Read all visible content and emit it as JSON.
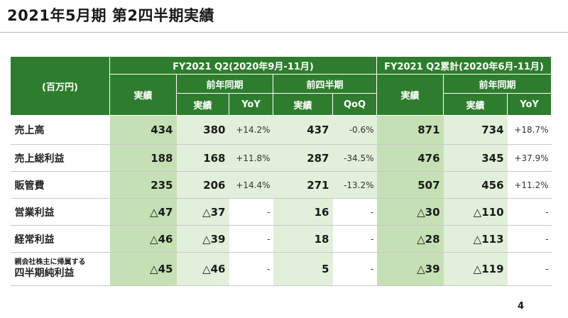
{
  "page": {
    "title": "2021年5月期 第2四半期実績",
    "page_number": "4"
  },
  "table": {
    "unit_label": "(百万円)",
    "group_q2": "FY2021 Q2(2020年9月-11月)",
    "group_ytd": "FY2021 Q2累計(2020年6月-11月)",
    "col_actual": "実績",
    "col_prev_year_period": "前年同期",
    "col_prev_quarter": "前四半期",
    "col_yoy": "YoY",
    "col_qoq": "QoQ",
    "rows": [
      {
        "label": "売上高",
        "q2_actual": "434",
        "q2_prev_year": "380",
        "q2_yoy": "+14.2%",
        "q2_prev_quarter": "437",
        "q2_qoq": "-0.6%",
        "ytd_actual": "871",
        "ytd_prev_year": "734",
        "ytd_yoy": "+18.7%"
      },
      {
        "label": "売上総利益",
        "q2_actual": "188",
        "q2_prev_year": "168",
        "q2_yoy": "+11.8%",
        "q2_prev_quarter": "287",
        "q2_qoq": "-34.5%",
        "ytd_actual": "476",
        "ytd_prev_year": "345",
        "ytd_yoy": "+37.9%"
      },
      {
        "label": "販管費",
        "q2_actual": "235",
        "q2_prev_year": "206",
        "q2_yoy": "+14.4%",
        "q2_prev_quarter": "271",
        "q2_qoq": "-13.2%",
        "ytd_actual": "507",
        "ytd_prev_year": "456",
        "ytd_yoy": "+11.2%"
      },
      {
        "label": "営業利益",
        "q2_actual": "△47",
        "q2_prev_year": "△37",
        "q2_yoy": "-",
        "q2_prev_quarter": "16",
        "q2_qoq": "-",
        "ytd_actual": "△30",
        "ytd_prev_year": "△110",
        "ytd_yoy": "-"
      },
      {
        "label": "経常利益",
        "q2_actual": "△46",
        "q2_prev_year": "△39",
        "q2_yoy": "-",
        "q2_prev_quarter": "18",
        "q2_qoq": "-",
        "ytd_actual": "△28",
        "ytd_prev_year": "△113",
        "ytd_yoy": "-"
      },
      {
        "label_line1": "親会社株主に帰属する",
        "label_line2": "四半期純利益",
        "q2_actual": "△45",
        "q2_prev_year": "△46",
        "q2_yoy": "-",
        "q2_prev_quarter": "5",
        "q2_qoq": "-",
        "ytd_actual": "△39",
        "ytd_prev_year": "△119",
        "ytd_yoy": "-"
      }
    ]
  },
  "colors": {
    "header_green": "#2e7d2e",
    "actual_fill": "#c5e0b4",
    "prior_fill": "#e2efda"
  }
}
